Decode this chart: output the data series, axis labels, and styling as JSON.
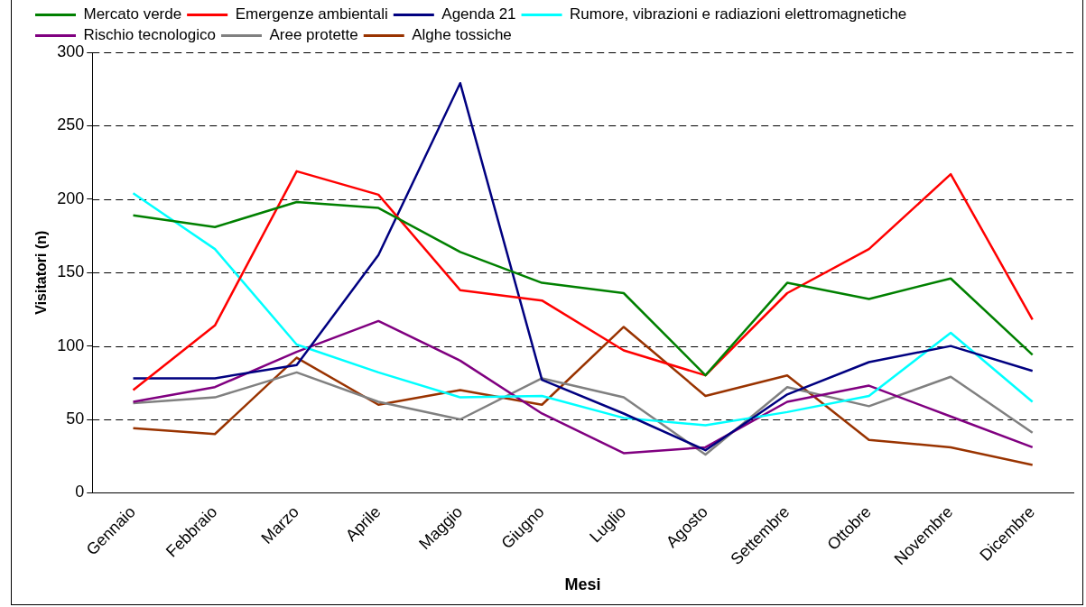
{
  "chart_data": {
    "type": "line",
    "xlabel": "Mesi",
    "ylabel": "Visitatori (n)",
    "categories": [
      "Gennaio",
      "Febbraio",
      "Marzo",
      "Aprile",
      "Maggio",
      "Giugno",
      "Luglio",
      "Agosto",
      "Settembre",
      "Ottobre",
      "Novembre",
      "Dicembre"
    ],
    "series": [
      {
        "name": "Mercato verde",
        "color": "#008000",
        "values": [
          189,
          181,
          198,
          194,
          164,
          143,
          136,
          80,
          143,
          132,
          146,
          94
        ]
      },
      {
        "name": "Emergenze ambientali",
        "color": "#ff0000",
        "values": [
          70,
          114,
          219,
          203,
          138,
          131,
          97,
          80,
          136,
          166,
          217,
          118
        ]
      },
      {
        "name": "Agenda 21",
        "color": "#000080",
        "values": [
          78,
          78,
          87,
          162,
          279,
          77,
          54,
          29,
          67,
          89,
          100,
          83
        ]
      },
      {
        "name": "Rumore, vibrazioni e radiazioni elettromagnetiche",
        "color": "#00ffff",
        "values": [
          204,
          166,
          101,
          82,
          65,
          66,
          51,
          46,
          55,
          66,
          109,
          62
        ]
      },
      {
        "name": "Rischio tecnologico",
        "color": "#800080",
        "values": [
          62,
          72,
          96,
          117,
          90,
          54,
          27,
          31,
          62,
          73,
          52,
          31
        ]
      },
      {
        "name": "Aree protette",
        "color": "#808080",
        "values": [
          61,
          65,
          82,
          62,
          50,
          78,
          65,
          26,
          72,
          59,
          79,
          41
        ]
      },
      {
        "name": "Alghe tossiche",
        "color": "#993300",
        "values": [
          44,
          40,
          92,
          60,
          70,
          60,
          113,
          66,
          80,
          36,
          31,
          19
        ]
      }
    ],
    "ylim": [
      0,
      300
    ],
    "yticks": [
      0,
      50,
      100,
      150,
      200,
      250,
      300
    ],
    "grid": "y",
    "legend": "top",
    "marker": "none",
    "line_style": "solid"
  }
}
